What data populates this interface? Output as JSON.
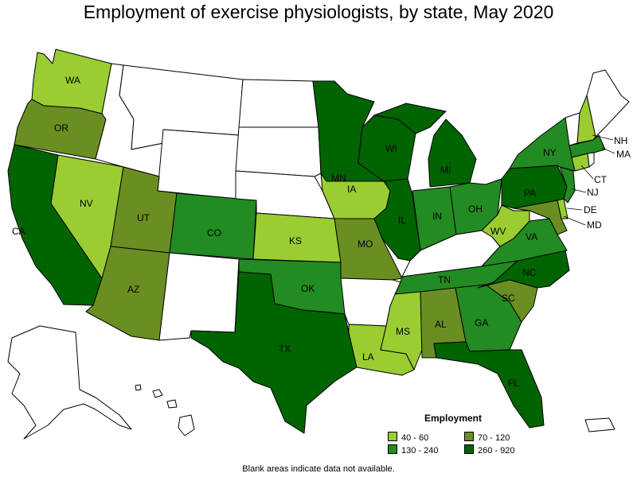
{
  "title": "Employment of exercise physiologists, by state, May 2020",
  "footnote": "Blank areas indicate data not available.",
  "legend": {
    "title": "Employment",
    "bins": [
      {
        "range": "40 - 60",
        "color": "#9acd32"
      },
      {
        "range": "70 - 120",
        "color": "#6b8e23"
      },
      {
        "range": "130 - 240",
        "color": "#228b22"
      },
      {
        "range": "260 - 920",
        "color": "#006400"
      }
    ]
  },
  "colors": {
    "no_data": "#ffffff",
    "outline": "#000000"
  },
  "states": {
    "WA": {
      "bin": "40 - 60"
    },
    "OR": {
      "bin": "70 - 120"
    },
    "CA": {
      "bin": "260 - 920"
    },
    "NV": {
      "bin": "40 - 60"
    },
    "ID": {
      "bin": null
    },
    "MT": {
      "bin": null
    },
    "WY": {
      "bin": null
    },
    "UT": {
      "bin": "70 - 120"
    },
    "AZ": {
      "bin": "70 - 120"
    },
    "CO": {
      "bin": "130 - 240"
    },
    "NM": {
      "bin": null
    },
    "ND": {
      "bin": null
    },
    "SD": {
      "bin": null
    },
    "NE": {
      "bin": null
    },
    "KS": {
      "bin": "40 - 60"
    },
    "OK": {
      "bin": "130 - 240"
    },
    "TX": {
      "bin": "260 - 920"
    },
    "MN": {
      "bin": "260 - 920"
    },
    "IA": {
      "bin": "40 - 60"
    },
    "MO": {
      "bin": "70 - 120"
    },
    "AR": {
      "bin": null
    },
    "LA": {
      "bin": "40 - 60"
    },
    "WI": {
      "bin": "260 - 920"
    },
    "IL": {
      "bin": "260 - 920"
    },
    "MI": {
      "bin": "260 - 920"
    },
    "IN": {
      "bin": "130 - 240"
    },
    "OH": {
      "bin": "130 - 240"
    },
    "KY": {
      "bin": null
    },
    "TN": {
      "bin": "130 - 240"
    },
    "MS": {
      "bin": "40 - 60"
    },
    "AL": {
      "bin": "70 - 120"
    },
    "GA": {
      "bin": "130 - 240"
    },
    "FL": {
      "bin": "260 - 920"
    },
    "SC": {
      "bin": "70 - 120"
    },
    "NC": {
      "bin": "260 - 920"
    },
    "VA": {
      "bin": "130 - 240"
    },
    "WV": {
      "bin": "40 - 60"
    },
    "MD": {
      "bin": "70 - 120"
    },
    "DE": {
      "bin": "40 - 60"
    },
    "PA": {
      "bin": "260 - 920"
    },
    "NJ": {
      "bin": "130 - 240"
    },
    "NY": {
      "bin": "130 - 240"
    },
    "CT": {
      "bin": "40 - 60"
    },
    "RI": {
      "bin": null
    },
    "MA": {
      "bin": "130 - 240"
    },
    "VT": {
      "bin": null
    },
    "NH": {
      "bin": "40 - 60"
    },
    "ME": {
      "bin": null
    },
    "AK": {
      "bin": null
    },
    "HI": {
      "bin": null
    },
    "PR": {
      "bin": null
    }
  },
  "labels": {
    "WA": "WA",
    "OR": "OR",
    "CA": "CA",
    "NV": "NV",
    "UT": "UT",
    "AZ": "AZ",
    "CO": "CO",
    "KS": "KS",
    "OK": "OK",
    "TX": "TX",
    "MN": "MN",
    "IA": "IA",
    "MO": "MO",
    "LA": "LA",
    "WI": "WI",
    "IL": "IL",
    "MI": "MI",
    "IN": "IN",
    "OH": "OH",
    "TN": "TN",
    "MS": "MS",
    "AL": "AL",
    "GA": "GA",
    "FL": "FL",
    "SC": "SC",
    "NC": "NC",
    "VA": "VA",
    "WV": "WV",
    "PA": "PA",
    "NY": "NY",
    "NH": "NH",
    "MA": "MA",
    "CT": "CT",
    "NJ": "NJ",
    "DE": "DE",
    "MD": "MD"
  }
}
